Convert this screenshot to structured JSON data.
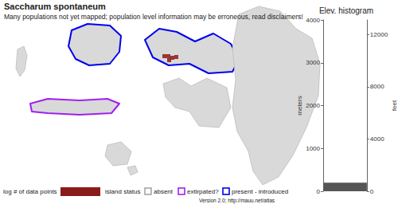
{
  "title": "Saccharum spontaneum",
  "subtitle": "Many populations not yet mapped; population level information may be erroneous, read disclaimers!",
  "map": {
    "islands": [
      {
        "status": "absent"
      },
      {
        "status": "present - introduced"
      },
      {
        "status": "present - introduced",
        "mapped_cells": 5
      },
      {
        "status": "extirpated?"
      },
      {
        "status": "absent"
      },
      {
        "status": "absent"
      },
      {
        "status": "absent"
      },
      {
        "status": "absent"
      }
    ]
  },
  "legend": {
    "points_title": "log # of data points",
    "points_color": "#8b1a1a",
    "status_title": "island status",
    "statuses": [
      {
        "label": "absent",
        "color": "#a6a6a6"
      },
      {
        "label": "extirpated?",
        "color": "#a020f0"
      },
      {
        "label": "present - introduced",
        "color": "#0000ee"
      }
    ]
  },
  "footer": "Version 2.0; http://mauu.net/atlas",
  "chart_data": {
    "type": "histogram",
    "title": "Elev. histogram",
    "orientation": "horizontal",
    "bins": [
      0,
      200
    ],
    "counts": [
      1
    ],
    "color": "#555555",
    "xlim": [
      0,
      1
    ],
    "ylabel": "meters",
    "ylim": [
      0,
      4000
    ],
    "yticks": [
      0,
      1000,
      2000,
      3000,
      4000
    ],
    "y2label": "feet",
    "y2lim": [
      0,
      13123.36
    ],
    "y2ticks": [
      0,
      4000,
      8000,
      12000
    ],
    "tick_labels": "y",
    "grid": false
  }
}
